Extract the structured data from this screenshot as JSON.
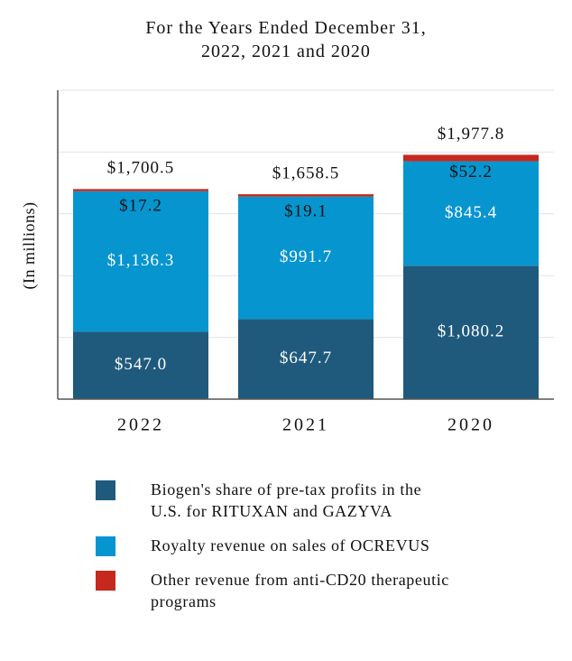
{
  "chart_data": {
    "type": "bar",
    "stacked": true,
    "title": "For the Years Ended December 31,\n2022, 2021 and 2020",
    "title_lines": [
      "For the Years Ended December 31,",
      "2022, 2021 and 2020"
    ],
    "ylabel": "(In millions)",
    "xlabel": "",
    "ylim": [
      0,
      2500
    ],
    "grid": true,
    "legend_position": "bottom",
    "categories": [
      "2022",
      "2021",
      "2020"
    ],
    "series": [
      {
        "name": "Biogen's share of pre-tax profits in the U.S. for RITUXAN and GAZYVA",
        "color": "#1f5a7d",
        "values": [
          547.0,
          647.7,
          1080.2
        ],
        "labels": [
          "$547.0",
          "$647.7",
          "$1,080.2"
        ],
        "label_color": "#ffffff"
      },
      {
        "name": "Royalty revenue on sales of OCREVUS",
        "color": "#0795cf",
        "values": [
          1136.3,
          991.7,
          845.4
        ],
        "labels": [
          "$1,136.3",
          "$991.7",
          "$845.4"
        ],
        "label_color": "#ffffff"
      },
      {
        "name": "Other revenue from anti-CD20 therapeutic programs",
        "color": "#c5281c",
        "values": [
          17.2,
          19.1,
          52.2
        ],
        "labels": [
          "$17.2",
          "$19.1",
          "$52.2"
        ],
        "label_color": "#111111"
      }
    ],
    "totals": [
      1700.5,
      1658.5,
      1977.8
    ],
    "total_labels": [
      "$1,700.5",
      "$1,658.5",
      "$1,977.8"
    ]
  },
  "legend": {
    "items": [
      {
        "lines": [
          "Biogen's share of pre-tax profits in the",
          "U.S. for RITUXAN and GAZYVA"
        ],
        "color": "#1f5a7d"
      },
      {
        "lines": [
          "Royalty revenue on sales of OCREVUS"
        ],
        "color": "#0795cf"
      },
      {
        "lines": [
          "Other revenue from anti-CD20 therapeutic",
          "programs"
        ],
        "color": "#c5281c"
      }
    ]
  }
}
